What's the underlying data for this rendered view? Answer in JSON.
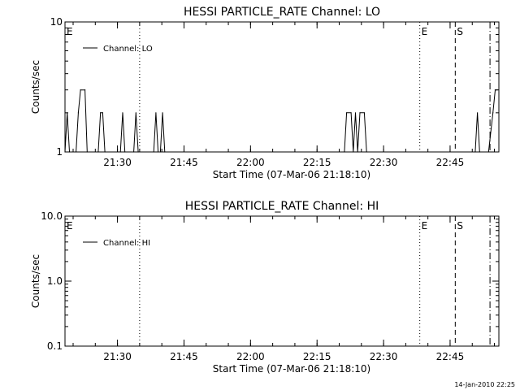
{
  "footer": {
    "timestamp": "14-Jan-2010 22:25"
  },
  "chart_data": [
    {
      "type": "line",
      "title": "HESSI PARTICLE_RATE Channel: LO",
      "xlabel": "Start Time (07-Mar-06 21:18:10)",
      "ylabel": "Counts/sec",
      "y_scale": "log",
      "ylim": [
        1,
        10
      ],
      "y_ticks": [
        "1",
        "10"
      ],
      "xlim": [
        "21:18:10",
        "22:56:00"
      ],
      "x_ticks": [
        "21:30",
        "21:45",
        "22:00",
        "22:15",
        "22:30",
        "22:45"
      ],
      "legend": {
        "position": "top-left",
        "entries": [
          "Channel: LO"
        ]
      },
      "series": [
        {
          "name": "Channel: LO",
          "points": [
            [
              "21:18:10",
              1
            ],
            [
              "21:18:40",
              2
            ],
            [
              "21:19:10",
              1
            ],
            [
              "21:20:40",
              1
            ],
            [
              "21:21:10",
              2
            ],
            [
              "21:21:40",
              3
            ],
            [
              "21:22:40",
              3
            ],
            [
              "21:23:10",
              1
            ],
            [
              "21:25:40",
              1
            ],
            [
              "21:26:10",
              2
            ],
            [
              "21:26:40",
              2
            ],
            [
              "21:27:10",
              1
            ],
            [
              "21:30:40",
              1
            ],
            [
              "21:31:10",
              2
            ],
            [
              "21:31:40",
              1
            ],
            [
              "21:33:40",
              1
            ],
            [
              "21:34:10",
              2
            ],
            [
              "21:34:40",
              1
            ],
            [
              "21:38:10",
              1
            ],
            [
              "21:38:40",
              2
            ],
            [
              "21:39:10",
              1
            ],
            [
              "21:39:40",
              1
            ],
            [
              "21:40:10",
              2
            ],
            [
              "21:40:40",
              1
            ],
            [
              "22:21:10",
              1
            ],
            [
              "22:21:40",
              2
            ],
            [
              "22:22:40",
              2
            ],
            [
              "22:23:10",
              1
            ],
            [
              "22:23:40",
              2
            ],
            [
              "22:24:10",
              1
            ],
            [
              "22:24:40",
              2
            ],
            [
              "22:25:40",
              2
            ],
            [
              "22:26:10",
              1
            ],
            [
              "22:50:40",
              1
            ],
            [
              "22:51:10",
              2
            ],
            [
              "22:51:40",
              1
            ],
            [
              "22:53:40",
              1
            ],
            [
              "22:54:40",
              2
            ],
            [
              "22:55:10",
              3
            ],
            [
              "22:55:40",
              3
            ]
          ]
        }
      ],
      "annotations": [
        {
          "time": "21:18:10",
          "label": "E",
          "line_style": "none"
        },
        {
          "time": "21:35:00",
          "label": "",
          "line_style": "dotted"
        },
        {
          "time": "22:38:10",
          "label": "E",
          "line_style": "dotted"
        },
        {
          "time": "22:46:10",
          "label": "S",
          "line_style": "dashed"
        },
        {
          "time": "22:54:00",
          "label": "",
          "line_style": "dashdot"
        }
      ]
    },
    {
      "type": "line",
      "title": "HESSI PARTICLE_RATE Channel: HI",
      "xlabel": "Start Time (07-Mar-06 21:18:10)",
      "ylabel": "Counts/sec",
      "y_scale": "log",
      "ylim": [
        0.1,
        10
      ],
      "y_ticks": [
        "0.1",
        "1.0",
        "10.0"
      ],
      "xlim": [
        "21:18:10",
        "22:56:00"
      ],
      "x_ticks": [
        "21:30",
        "21:45",
        "22:00",
        "22:15",
        "22:30",
        "22:45"
      ],
      "legend": {
        "position": "top-left",
        "entries": [
          "Channel: HI"
        ]
      },
      "series": [
        {
          "name": "Channel: HI",
          "points": []
        }
      ],
      "annotations": [
        {
          "time": "21:18:10",
          "label": "E",
          "line_style": "none"
        },
        {
          "time": "21:35:00",
          "label": "",
          "line_style": "dotted"
        },
        {
          "time": "22:38:10",
          "label": "E",
          "line_style": "dotted"
        },
        {
          "time": "22:46:10",
          "label": "S",
          "line_style": "dashed"
        },
        {
          "time": "22:54:00",
          "label": "",
          "line_style": "dashdot"
        }
      ]
    }
  ]
}
